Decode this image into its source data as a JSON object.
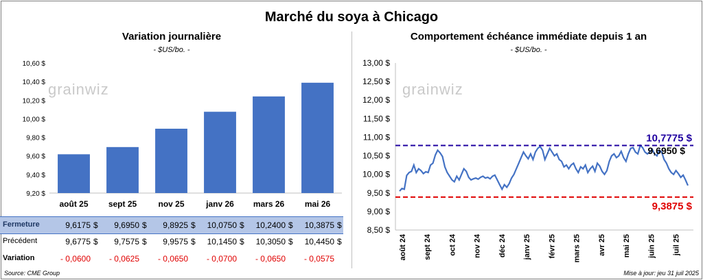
{
  "title": "Marché du soya à Chicago",
  "left": {
    "subtitle": "Variation journalière",
    "unit": "- $US/bo. -",
    "logo": "grainwiz"
  },
  "right": {
    "subtitle": "Comportement échéance immédiate depuis 1 an",
    "unit": "- $US/bo. -",
    "logo": "grainwiz"
  },
  "table": {
    "currency": "$",
    "rows": [
      {
        "label": "Fermeture",
        "values": [
          "9,6175",
          "9,6950",
          "9,8925",
          "10,0750",
          "10,2400",
          "10,3875"
        ]
      },
      {
        "label": "Précédent",
        "values": [
          "9,6775",
          "9,7575",
          "9,9575",
          "10,1450",
          "10,3050",
          "10,4450"
        ]
      },
      {
        "label": "Variation",
        "values": [
          "- 0,0600",
          "- 0,0625",
          "- 0,0650",
          "- 0,0700",
          "- 0,0650",
          "- 0,0575"
        ]
      }
    ]
  },
  "footer": {
    "source": "Source: CME Group",
    "updated": "Mise à jour: jeu 31 juil 2025"
  },
  "chart_data": [
    {
      "type": "bar",
      "title": "Variation journalière",
      "categories": [
        "août 25",
        "sept 25",
        "nov 25",
        "janv 26",
        "mars 26",
        "mai 26"
      ],
      "values": [
        9.6175,
        9.695,
        9.8925,
        10.075,
        10.24,
        10.3875
      ],
      "ylim": [
        9.2,
        10.6
      ],
      "yticks": [
        "9,20 $",
        "9,40 $",
        "9,60 $",
        "9,80 $",
        "10,00 $",
        "10,20 $",
        "10,40 $",
        "10,60 $"
      ],
      "color": "#4472c4",
      "grid": false
    },
    {
      "type": "line",
      "title": "Comportement échéance immédiate depuis 1 an",
      "ylim": [
        8.5,
        13.0
      ],
      "yticks": [
        "8,50 $",
        "9,00 $",
        "9,50 $",
        "10,00 $",
        "10,50 $",
        "11,00 $",
        "11,50 $",
        "12,00 $",
        "12,50 $",
        "13,00 $"
      ],
      "xticks": [
        "août 24",
        "sept 24",
        "oct 24",
        "nov 24",
        "déc 24",
        "janv 25",
        "févr 25",
        "mars 25",
        "avr 25",
        "mai 25",
        "juin 25",
        "juil 25"
      ],
      "color": "#4472c4",
      "series": [
        {
          "values": [
            9.55,
            9.62,
            9.6,
            9.97,
            10.05,
            10.08,
            10.25,
            10.05,
            10.15,
            10.1,
            10.02,
            10.07,
            10.05,
            10.25,
            10.3,
            10.52,
            10.65,
            10.58,
            10.48,
            10.2,
            10.05,
            9.95,
            9.85,
            9.8,
            9.95,
            9.85,
            10.0,
            10.15,
            10.08,
            9.92,
            9.85,
            9.88,
            9.9,
            9.87,
            9.92,
            9.95,
            9.9,
            9.92,
            9.88,
            9.95,
            9.98,
            9.85,
            9.72,
            9.6,
            9.72,
            9.65,
            9.75,
            9.9,
            10.0,
            10.15,
            10.3,
            10.45,
            10.6,
            10.5,
            10.42,
            10.55,
            10.4,
            10.6,
            10.7,
            10.75,
            10.65,
            10.4,
            10.55,
            10.7,
            10.6,
            10.5,
            10.55,
            10.4,
            10.35,
            10.2,
            10.25,
            10.15,
            10.25,
            10.3,
            10.15,
            10.05,
            10.2,
            10.15,
            10.25,
            10.05,
            10.15,
            10.22,
            10.08,
            10.3,
            10.22,
            10.08,
            10.0,
            10.1,
            10.35,
            10.5,
            10.55,
            10.45,
            10.5,
            10.62,
            10.45,
            10.35,
            10.55,
            10.7,
            10.72,
            10.6,
            10.55,
            10.78,
            10.72,
            10.6,
            10.55,
            10.6,
            10.68,
            10.55,
            10.5,
            10.65,
            10.6,
            10.4,
            10.3,
            10.15,
            10.05,
            10.0,
            10.1,
            10.02,
            9.92,
            9.98,
            9.85,
            9.7
          ]
        }
      ],
      "hlines": [
        {
          "value": 10.7775,
          "label": "10,7775 $",
          "color": "#1f00a0"
        },
        {
          "value": 9.3875,
          "label": "9,3875 $",
          "color": "#e00000"
        }
      ],
      "last_label": "9,6950 $"
    }
  ]
}
